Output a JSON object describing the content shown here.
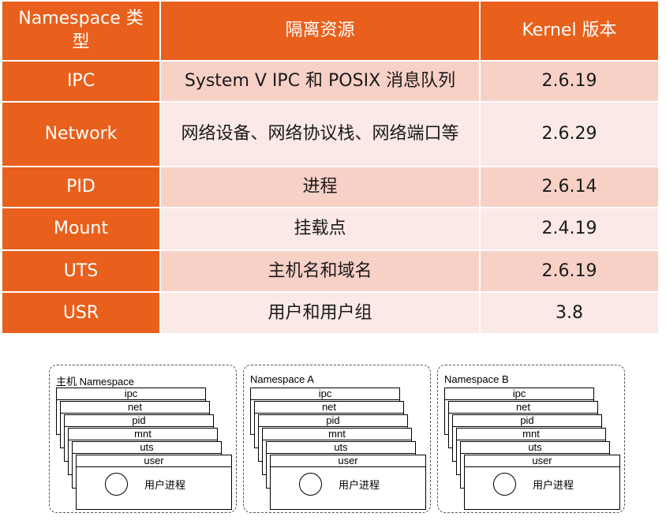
{
  "table": {
    "headers": [
      "Namespace 类型",
      "隔离资源",
      "Kernel 版本"
    ],
    "rows": [
      {
        "type": "IPC",
        "resource": "System V IPC 和 POSIX 消息队列",
        "kernel": "2.6.19"
      },
      {
        "type": "Network",
        "resource": "网络设备、网络协议栈、网络端口等",
        "kernel": "2.6.29"
      },
      {
        "type": "PID",
        "resource": "进程",
        "kernel": "2.6.14"
      },
      {
        "type": "Mount",
        "resource": "挂载点",
        "kernel": "2.4.19"
      },
      {
        "type": "UTS",
        "resource": "主机名和域名",
        "kernel": "2.6.19"
      },
      {
        "type": "USR",
        "resource": "用户和用户组",
        "kernel": "3.8"
      }
    ]
  },
  "diagram": {
    "namespaces": [
      {
        "title": "主机 Namespace"
      },
      {
        "title": "Namespace A"
      },
      {
        "title": "Namespace B"
      }
    ],
    "layers": [
      "ipc",
      "net",
      "pid",
      "mnt",
      "uts",
      "user"
    ],
    "process_label": "用户进程"
  },
  "colors": {
    "header_bg": "#e8601c",
    "row_odd_bg": "#f7d0c6",
    "row_even_bg": "#fbe9e5"
  }
}
